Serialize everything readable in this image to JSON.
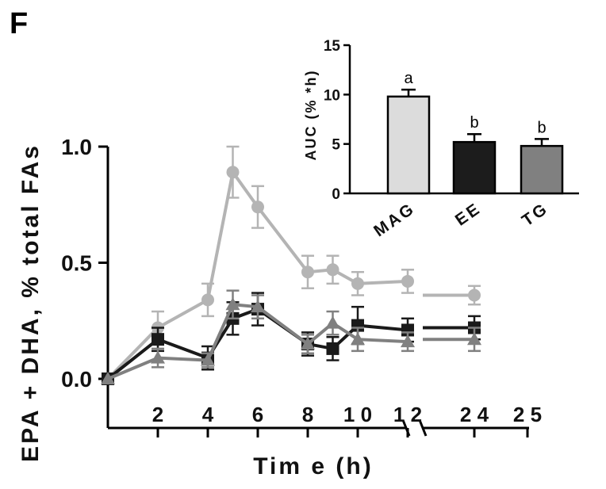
{
  "panel_label": "F",
  "chart_data": [
    {
      "type": "line",
      "xlabel": "Tim e (h)",
      "ylabel": "EPA + DHA, % total FAs",
      "ylim": [
        0,
        1.0
      ],
      "y_ticks": [
        0.0,
        0.5,
        1.0
      ],
      "y_tick_labels": [
        "0.0",
        "0.5",
        "1.0"
      ],
      "x_ticks": [
        2,
        4,
        6,
        8,
        10,
        12,
        24,
        25
      ],
      "x_tick_labels": [
        "2",
        "4",
        "6",
        "8",
        "1 0",
        "1 2",
        "2 4",
        "2 5"
      ],
      "x_axis_break": true,
      "series": [
        {
          "color": "#b4b4b4",
          "marker": "circle",
          "x": [
            0,
            2,
            4,
            5,
            6,
            8,
            9,
            10,
            12,
            24
          ],
          "y": [
            0.0,
            0.22,
            0.34,
            0.89,
            0.74,
            0.46,
            0.47,
            0.41,
            0.42,
            0.36
          ],
          "err": [
            0.0,
            0.07,
            0.07,
            0.11,
            0.09,
            0.07,
            0.06,
            0.05,
            0.05,
            0.04
          ]
        },
        {
          "color": "#1a1a1a",
          "marker": "square",
          "x": [
            0,
            2,
            4,
            5,
            6,
            8,
            9,
            10,
            12,
            24
          ],
          "y": [
            0.0,
            0.17,
            0.09,
            0.26,
            0.3,
            0.15,
            0.13,
            0.23,
            0.21,
            0.22
          ],
          "err": [
            0.0,
            0.05,
            0.05,
            0.07,
            0.07,
            0.05,
            0.05,
            0.08,
            0.05,
            0.05
          ]
        },
        {
          "color": "#808080",
          "marker": "triangle",
          "x": [
            0,
            2,
            4,
            5,
            6,
            8,
            9,
            10,
            12,
            24
          ],
          "y": [
            0.0,
            0.09,
            0.08,
            0.32,
            0.31,
            0.15,
            0.24,
            0.17,
            0.16,
            0.17
          ],
          "err": [
            0.0,
            0.04,
            0.03,
            0.06,
            0.05,
            0.04,
            0.05,
            0.05,
            0.04,
            0.05
          ]
        }
      ]
    },
    {
      "type": "bar",
      "ylabel": "AUC (% *h)",
      "ylim": [
        0,
        15
      ],
      "y_ticks": [
        0,
        5,
        10,
        15
      ],
      "y_tick_labels": [
        "0",
        "5",
        "10",
        "15"
      ],
      "categories": [
        "MAG",
        "EE",
        "TG"
      ],
      "values": [
        9.8,
        5.2,
        4.8
      ],
      "errors": [
        0.7,
        0.8,
        0.7
      ],
      "annotations": [
        "a",
        "b",
        "b"
      ],
      "colors": [
        "#dcdcdc",
        "#1c1c1c",
        "#808080"
      ]
    }
  ]
}
